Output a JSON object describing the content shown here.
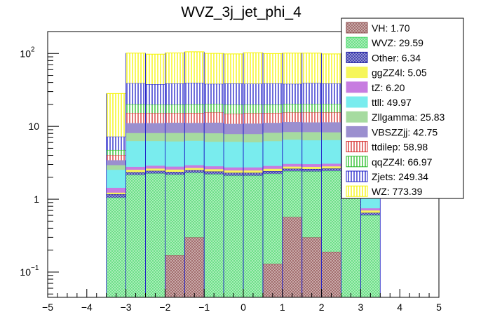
{
  "chart_data": {
    "type": "bar",
    "stacked": true,
    "title": "WVZ_3j_jet_phi_4",
    "xlabel": "",
    "ylabel": "",
    "xlim": [
      -5,
      5
    ],
    "ylim": [
      0.045,
      200
    ],
    "yscale": "log",
    "x_ticks": [
      "−5",
      "−4",
      "−3",
      "−2",
      "−1",
      "0",
      "1",
      "2",
      "3",
      "4",
      "5"
    ],
    "y_ticks": [
      {
        "value": 0.1,
        "base": "10",
        "exp": "−1"
      },
      {
        "value": 1,
        "base": "1",
        "exp": ""
      },
      {
        "value": 10,
        "base": "10",
        "exp": ""
      },
      {
        "value": 100,
        "base": "10",
        "exp": "2"
      }
    ],
    "bin_edges": [
      -3.5,
      -3,
      -2.5,
      -2,
      -1.5,
      -1,
      -0.5,
      0,
      0.5,
      1,
      1.5,
      2,
      2.5,
      3,
      3.5
    ],
    "legend_position": "top-right",
    "series": [
      {
        "name": "VH: 1.70",
        "color": "#8c4a4a",
        "pattern": "cross",
        "values": [
          0,
          0,
          0,
          0.17,
          0.3,
          0,
          0,
          0,
          0.13,
          0.57,
          0.3,
          0.19,
          0,
          0
        ]
      },
      {
        "name": "WVZ: 29.59",
        "color": "#49d96b",
        "pattern": "cross",
        "values": [
          1.05,
          2.15,
          2.25,
          2.0,
          2.0,
          2.2,
          2.1,
          2.1,
          2.1,
          1.85,
          2.1,
          2.25,
          2.3,
          0.6
        ]
      },
      {
        "name": "Other: 6.34",
        "color": "#1a1aa0",
        "pattern": "cross",
        "values": [
          0.12,
          0.2,
          0.2,
          0.2,
          0.2,
          0.2,
          0.2,
          0.2,
          0.2,
          0.2,
          0.2,
          0.2,
          0.2,
          0.05
        ]
      },
      {
        "name": "ggZZ4l: 5.05",
        "color": "#f6f65a",
        "pattern": "solid",
        "values": [
          0.06,
          0.18,
          0.18,
          0.18,
          0.18,
          0.18,
          0.18,
          0.18,
          0.18,
          0.18,
          0.18,
          0.18,
          0.18,
          0.05
        ]
      },
      {
        "name": "tZ: 6.20",
        "color": "#c77ce0",
        "pattern": "solid",
        "values": [
          0.2,
          0.25,
          0.25,
          0.25,
          0.25,
          0.25,
          0.25,
          0.25,
          0.25,
          0.25,
          0.25,
          0.25,
          0.25,
          0.05
        ]
      },
      {
        "name": "ttll: 49.97",
        "color": "#79ecee",
        "pattern": "solid",
        "values": [
          1.1,
          3.5,
          3.4,
          3.4,
          3.4,
          3.3,
          3.4,
          3.3,
          3.4,
          3.5,
          3.4,
          3.4,
          3.6,
          0.75
        ]
      },
      {
        "name": "Zllgamma: 25.83",
        "color": "#a6dba0",
        "pattern": "solid",
        "values": [
          0.4,
          1.8,
          1.8,
          1.9,
          1.8,
          1.9,
          1.7,
          1.8,
          1.9,
          1.8,
          1.9,
          1.8,
          1.9,
          0.3
        ]
      },
      {
        "name": "VBSZZjj: 42.75",
        "color": "#9b8fcf",
        "pattern": "solid",
        "values": [
          0.5,
          3.0,
          3.0,
          3.1,
          3.0,
          3.2,
          3.0,
          3.1,
          3.0,
          3.1,
          3.0,
          3.1,
          3.0,
          0.5
        ]
      },
      {
        "name": "ttdilep: 58.98",
        "color": "#d62b2b",
        "pattern": "vertical",
        "values": [
          0.6,
          4.2,
          4.1,
          4.0,
          4.1,
          4.3,
          4.0,
          4.2,
          4.1,
          4.0,
          4.2,
          4.1,
          4.3,
          0.5
        ]
      },
      {
        "name": "qqZZ4l: 66.97",
        "color": "#22bb22",
        "pattern": "vertical",
        "values": [
          0.7,
          4.8,
          4.7,
          4.6,
          4.8,
          4.7,
          4.9,
          4.7,
          4.6,
          4.8,
          4.7,
          4.8,
          4.7,
          0.6
        ]
      },
      {
        "name": "Zjets: 249.34",
        "color": "#1e1ec8",
        "pattern": "vertical",
        "values": [
          2.5,
          19.0,
          18.0,
          19.0,
          19.5,
          18.0,
          19.0,
          18.5,
          19.0,
          18.0,
          19.0,
          18.5,
          19.0,
          2.3
        ]
      },
      {
        "name": "WZ: 773.39",
        "color": "#f5f500",
        "pattern": "vertical",
        "values": [
          21.0,
          62.0,
          60.0,
          63.0,
          66.0,
          62.0,
          60.0,
          64.0,
          61.0,
          63.0,
          62.0,
          60.0,
          63.0,
          20.0
        ]
      }
    ]
  }
}
